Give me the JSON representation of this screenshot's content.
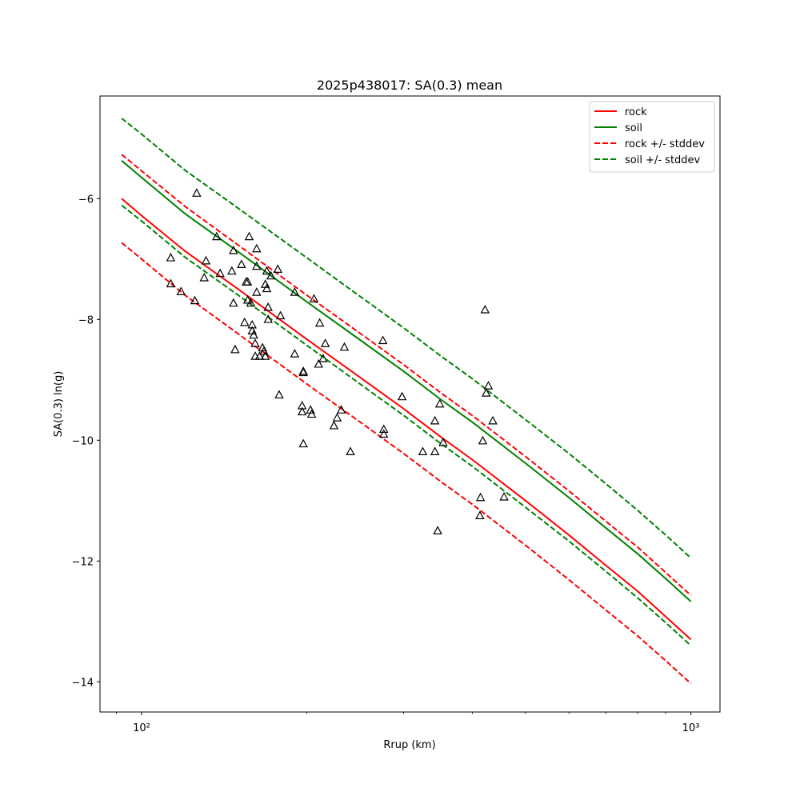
{
  "chart_data": {
    "type": "line",
    "title": "2025p438017: SA(0.3) mean",
    "xlabel": "Rrup (km)",
    "ylabel": "SA(0.3) ln(g)",
    "xscale": "log",
    "xlim": [
      84,
      1130
    ],
    "ylim": [
      -14.5,
      -4.3
    ],
    "xticks": [
      {
        "value": 100,
        "label": "10²"
      },
      {
        "value": 1000,
        "label": "10³"
      }
    ],
    "yticks": [
      -14,
      -12,
      -10,
      -8,
      -6
    ],
    "grid": false,
    "legend": {
      "placement": "top-right",
      "entries": [
        {
          "label": "rock",
          "color": "#ff0000",
          "style": "solid"
        },
        {
          "label": "soil",
          "color": "#008000",
          "style": "solid"
        },
        {
          "label": "rock +/- stddev",
          "color": "#ff0000",
          "style": "dashed"
        },
        {
          "label": "soil +/- stddev",
          "color": "#008000",
          "style": "dashed"
        }
      ]
    },
    "x": [
      92,
      100,
      120,
      150,
      200,
      250,
      300,
      350,
      400,
      500,
      600,
      700,
      800,
      900,
      1000
    ],
    "series": [
      {
        "name": "rock",
        "color": "#ff0000",
        "dashed": false,
        "values": [
          -6.0,
          -6.28,
          -6.87,
          -7.5,
          -8.33,
          -8.96,
          -9.48,
          -9.94,
          -10.32,
          -11.0,
          -11.57,
          -12.07,
          -12.5,
          -12.92,
          -13.3
        ]
      },
      {
        "name": "soil",
        "color": "#008000",
        "dashed": false,
        "values": [
          -5.37,
          -5.65,
          -6.25,
          -6.88,
          -7.71,
          -8.34,
          -8.86,
          -9.32,
          -9.7,
          -10.38,
          -10.95,
          -11.45,
          -11.88,
          -12.29,
          -12.67
        ]
      },
      {
        "name": "rock +/- stddev",
        "color": "#ff0000",
        "dashed": true,
        "values": [
          -5.27,
          -5.54,
          -6.13,
          -6.77,
          -7.6,
          -8.23,
          -8.75,
          -9.21,
          -9.59,
          -10.27,
          -10.84,
          -11.34,
          -11.77,
          -12.19,
          -12.57
        ]
      },
      {
        "name": "rock +/- stddev",
        "color": "#ff0000",
        "dashed": true,
        "values": [
          -6.73,
          -7.0,
          -7.6,
          -8.24,
          -9.07,
          -9.7,
          -10.22,
          -10.68,
          -11.06,
          -11.74,
          -12.31,
          -12.81,
          -13.24,
          -13.65,
          -14.03
        ]
      },
      {
        "name": "soil +/- stddev",
        "color": "#008000",
        "dashed": true,
        "values": [
          -4.67,
          -4.93,
          -5.53,
          -6.16,
          -6.98,
          -7.62,
          -8.14,
          -8.6,
          -8.98,
          -9.66,
          -10.22,
          -10.72,
          -11.16,
          -11.57,
          -11.95
        ]
      },
      {
        "name": "soil +/- stddev",
        "color": "#008000",
        "dashed": true,
        "values": [
          -6.11,
          -6.37,
          -6.97,
          -7.6,
          -8.43,
          -9.07,
          -9.59,
          -10.05,
          -10.43,
          -11.11,
          -11.67,
          -12.17,
          -12.61,
          -13.02,
          -13.4
        ]
      }
    ],
    "observations": [
      [
        113,
        -6.98
      ],
      [
        113,
        -7.41
      ],
      [
        118,
        -7.54
      ],
      [
        125,
        -7.69
      ],
      [
        126,
        -5.91
      ],
      [
        130,
        -7.31
      ],
      [
        131,
        -7.03
      ],
      [
        137,
        -6.63
      ],
      [
        139,
        -7.24
      ],
      [
        146,
        -7.2
      ],
      [
        147,
        -6.86
      ],
      [
        147,
        -7.73
      ],
      [
        148,
        -8.5
      ],
      [
        152,
        -7.09
      ],
      [
        154,
        -8.05
      ],
      [
        155,
        -7.38
      ],
      [
        156,
        -7.68
      ],
      [
        156,
        -7.38
      ],
      [
        157,
        -6.63
      ],
      [
        158,
        -7.73
      ],
      [
        159,
        -8.09
      ],
      [
        159,
        -8.19
      ],
      [
        160,
        -8.26
      ],
      [
        161,
        -8.4
      ],
      [
        161,
        -8.61
      ],
      [
        162,
        -7.12
      ],
      [
        162,
        -6.83
      ],
      [
        162,
        -7.55
      ],
      [
        164,
        -8.61
      ],
      [
        166,
        -8.47
      ],
      [
        167,
        -8.53
      ],
      [
        168,
        -8.61
      ],
      [
        168,
        -7.42
      ],
      [
        169,
        -7.2
      ],
      [
        169,
        -7.49
      ],
      [
        170,
        -7.8
      ],
      [
        170,
        -8.0
      ],
      [
        172,
        -7.28
      ],
      [
        177,
        -7.17
      ],
      [
        178,
        -9.25
      ],
      [
        179,
        -7.94
      ],
      [
        190,
        -7.55
      ],
      [
        190,
        -8.57
      ],
      [
        196,
        -9.43
      ],
      [
        196,
        -9.53
      ],
      [
        197,
        -8.88
      ],
      [
        197,
        -8.86
      ],
      [
        197,
        -10.06
      ],
      [
        203,
        -9.5
      ],
      [
        204,
        -9.57
      ],
      [
        206,
        -7.66
      ],
      [
        210,
        -8.74
      ],
      [
        211,
        -8.06
      ],
      [
        214,
        -8.65
      ],
      [
        216,
        -8.4
      ],
      [
        224,
        -9.76
      ],
      [
        227,
        -9.63
      ],
      [
        231,
        -9.5
      ],
      [
        234,
        -8.46
      ],
      [
        240,
        -10.19
      ],
      [
        275,
        -8.35
      ],
      [
        276,
        -9.82
      ],
      [
        276,
        -9.9
      ],
      [
        298,
        -9.28
      ],
      [
        325,
        -10.19
      ],
      [
        342,
        -9.68
      ],
      [
        342,
        -10.19
      ],
      [
        346,
        -11.5
      ],
      [
        349,
        -9.4
      ],
      [
        354,
        -10.04
      ],
      [
        413,
        -11.25
      ],
      [
        414,
        -10.95
      ],
      [
        418,
        -10.01
      ],
      [
        422,
        -7.84
      ],
      [
        424,
        -9.22
      ],
      [
        428,
        -9.1
      ],
      [
        436,
        -9.68
      ],
      [
        457,
        -10.94
      ]
    ]
  }
}
